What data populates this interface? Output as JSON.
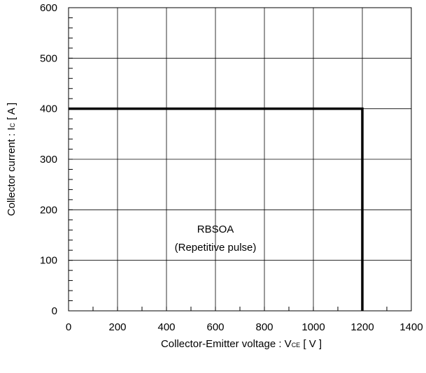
{
  "chart_data": {
    "type": "line",
    "title": "",
    "xlabel": {
      "main": "Collector-Emitter voltage : V",
      "sub": "CE",
      "unit": " [ V ]"
    },
    "ylabel": {
      "main": "Collector current : I",
      "sub": "C",
      "unit": " [ A ]"
    },
    "xlim": [
      0,
      1400
    ],
    "ylim": [
      0,
      600
    ],
    "xticks": [
      0,
      200,
      400,
      600,
      800,
      1000,
      1200,
      1400
    ],
    "yticks": [
      0,
      100,
      200,
      300,
      400,
      500,
      600
    ],
    "x_minor_step": 100,
    "y_minor_step": 20,
    "grid": true,
    "series": [
      {
        "color": "#000000",
        "points": [
          [
            0,
            400
          ],
          [
            1200,
            400
          ],
          [
            1200,
            0
          ]
        ]
      }
    ],
    "annotations": [
      {
        "lines": [
          "RBSOA",
          "(Repetitive pulse)"
        ],
        "x": 600,
        "y": 155
      }
    ]
  }
}
